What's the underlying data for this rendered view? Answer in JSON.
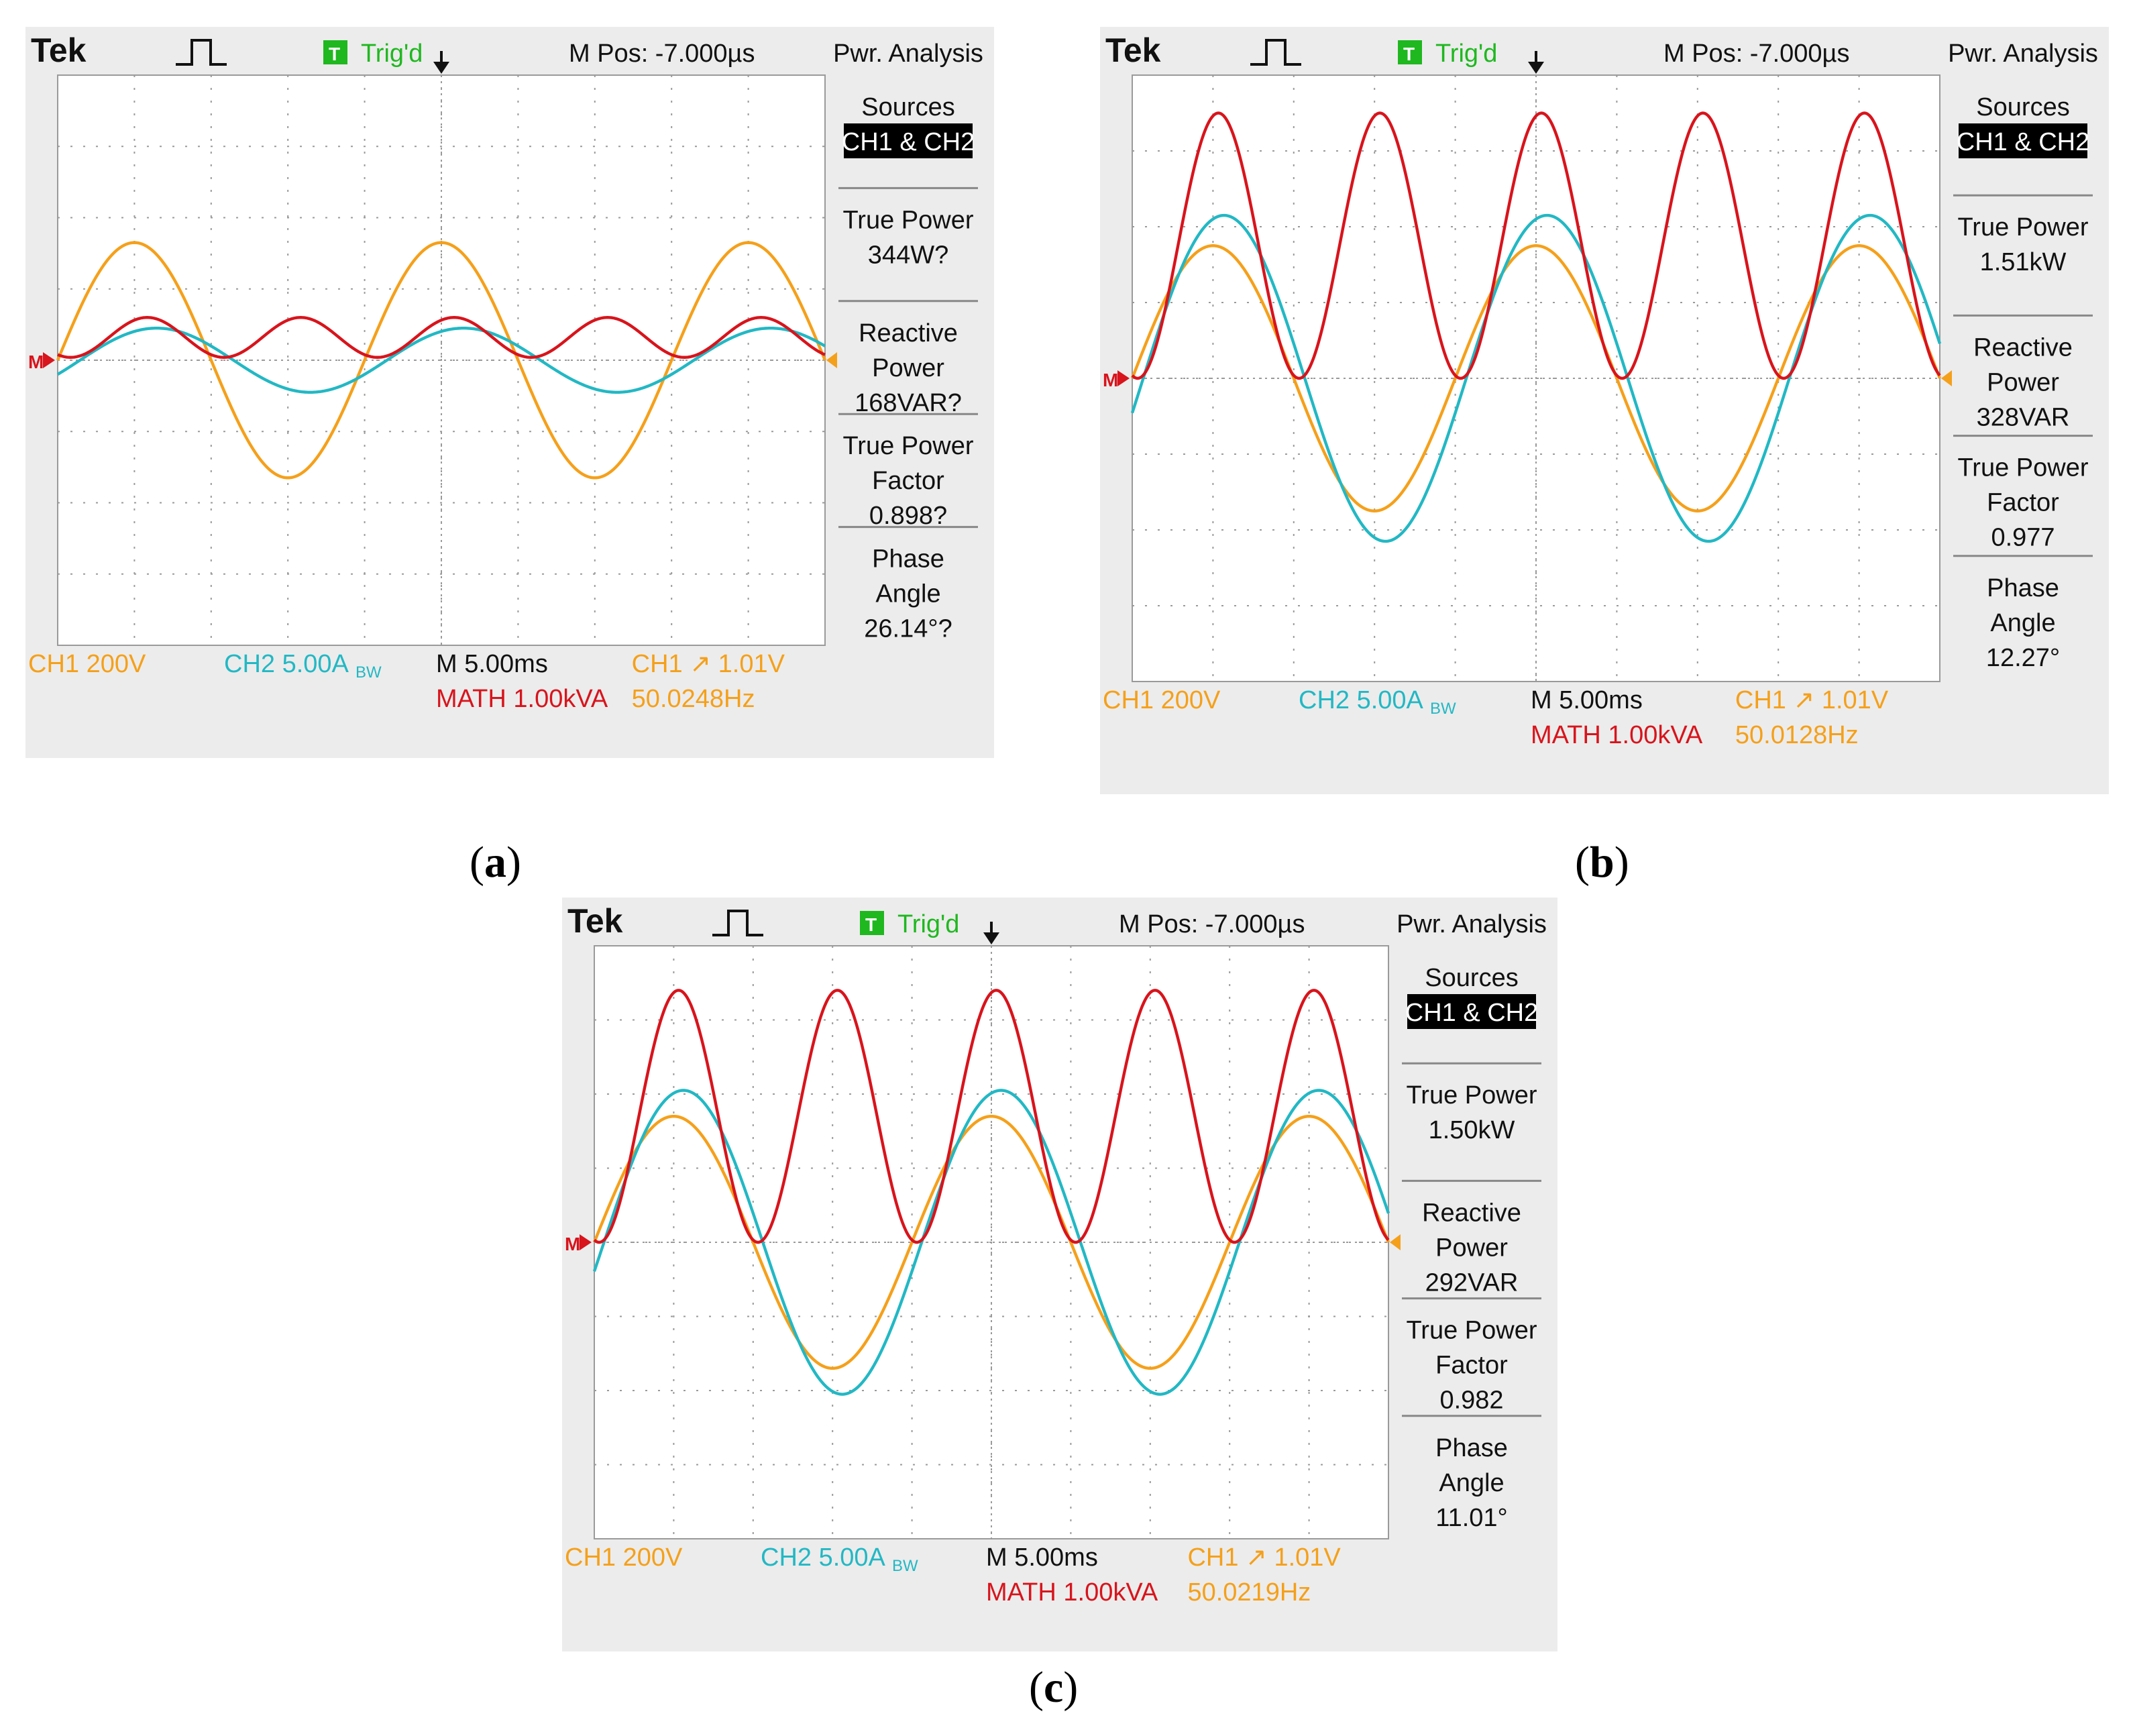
{
  "scopes": [
    {
      "id": "a",
      "caption": "a",
      "brand": "Tek",
      "trig_icon": "T",
      "trig_status": "Trig'd",
      "mpos": "M Pos: -7.000µs",
      "menu_title": "Pwr. Analysis",
      "ch1_label": "CH1  200V",
      "ch2_label": "CH2  5.00A",
      "ch2_suffix": "BW",
      "timebase": "M 5.00ms",
      "math_label": "MATH 1.00kVA",
      "trigger": "CH1 ↗ 1.01V",
      "frequency": "50.0248Hz",
      "side_menu": [
        {
          "lines": [
            "Sources"
          ],
          "highlight": "CH1 & CH2"
        },
        {
          "lines": [
            "True Power",
            "344W?"
          ]
        },
        {
          "lines": [
            "Reactive",
            "Power",
            "168VAR?"
          ]
        },
        {
          "lines": [
            "True Power",
            "Factor",
            "0.898?"
          ]
        },
        {
          "lines": [
            "Phase",
            "Angle",
            "26.14°?"
          ]
        }
      ]
    },
    {
      "id": "b",
      "caption": "b",
      "brand": "Tek",
      "trig_icon": "T",
      "trig_status": "Trig'd",
      "mpos": "M Pos: -7.000µs",
      "menu_title": "Pwr. Analysis",
      "ch1_label": "CH1  200V",
      "ch2_label": "CH2  5.00A",
      "ch2_suffix": "BW",
      "timebase": "M 5.00ms",
      "math_label": "MATH 1.00kVA",
      "trigger": "CH1 ↗ 1.01V",
      "frequency": "50.0128Hz",
      "side_menu": [
        {
          "lines": [
            "Sources"
          ],
          "highlight": "CH1 & CH2"
        },
        {
          "lines": [
            "True Power",
            "1.51kW"
          ]
        },
        {
          "lines": [
            "Reactive",
            "Power",
            "328VAR"
          ]
        },
        {
          "lines": [
            "True Power",
            "Factor",
            "0.977"
          ]
        },
        {
          "lines": [
            "Phase",
            "Angle",
            "12.27°"
          ]
        }
      ]
    },
    {
      "id": "c",
      "caption": "c",
      "brand": "Tek",
      "trig_icon": "T",
      "trig_status": "Trig'd",
      "mpos": "M Pos: -7.000µs",
      "menu_title": "Pwr. Analysis",
      "ch1_label": "CH1  200V",
      "ch2_label": "CH2  5.00A",
      "ch2_suffix": "BW",
      "timebase": "M 5.00ms",
      "math_label": "MATH 1.00kVA",
      "trigger": "CH1 ↗ 1.01V",
      "frequency": "50.0219Hz",
      "side_menu": [
        {
          "lines": [
            "Sources"
          ],
          "highlight": "CH1 & CH2"
        },
        {
          "lines": [
            "True Power",
            "1.50kW"
          ]
        },
        {
          "lines": [
            "Reactive",
            "Power",
            "292VAR"
          ]
        },
        {
          "lines": [
            "True Power",
            "Factor",
            "0.982"
          ]
        },
        {
          "lines": [
            "Phase",
            "Angle",
            "11.01°"
          ]
        }
      ]
    }
  ],
  "colors": {
    "ch1": "#f5a01a",
    "ch2": "#22b8c4",
    "math": "#d8141c",
    "grid": "#9a9a9a",
    "trig_green": "#1fb81f",
    "text": "#111111"
  },
  "chart_data": [
    {
      "type": "line",
      "title": "(a)",
      "x_unit": "divisions (5.00 ms/div)",
      "xlim": [
        0,
        10
      ],
      "ylim": [
        -4,
        4
      ],
      "series": [
        {
          "name": "CH1 voltage",
          "kind": "sine",
          "amplitude_div": 1.65,
          "offset_div": 0.0,
          "period_div": 4.0,
          "phase_deg": 0
        },
        {
          "name": "CH2 current",
          "kind": "sine",
          "amplitude_div": 0.45,
          "offset_div": 0.0,
          "period_div": 4.0,
          "phase_deg": 26.14
        },
        {
          "name": "MATH power",
          "kind": "power",
          "mean_div": 0.32,
          "swing_div": 0.28,
          "period_div": 2.0,
          "phase_deg": 30
        }
      ]
    },
    {
      "type": "line",
      "title": "(b)",
      "x_unit": "divisions (5.00 ms/div)",
      "xlim": [
        0,
        10
      ],
      "ylim": [
        -4,
        4
      ],
      "series": [
        {
          "name": "CH1 voltage",
          "kind": "sine",
          "amplitude_div": 1.75,
          "offset_div": 0.0,
          "period_div": 4.0,
          "phase_deg": 0
        },
        {
          "name": "CH2 current",
          "kind": "sine",
          "amplitude_div": 2.15,
          "offset_div": 0.0,
          "period_div": 4.0,
          "phase_deg": 12.27
        },
        {
          "name": "MATH power",
          "kind": "power",
          "mean_div": 1.75,
          "swing_div": 1.75,
          "period_div": 2.0,
          "phase_deg": 12
        }
      ]
    },
    {
      "type": "line",
      "title": "(c)",
      "x_unit": "divisions (5.00 ms/div)",
      "xlim": [
        0,
        10
      ],
      "ylim": [
        -4,
        4
      ],
      "series": [
        {
          "name": "CH1 voltage",
          "kind": "sine",
          "amplitude_div": 1.7,
          "offset_div": 0.0,
          "period_div": 4.0,
          "phase_deg": 0
        },
        {
          "name": "CH2 current",
          "kind": "sine",
          "amplitude_div": 2.05,
          "offset_div": 0.0,
          "period_div": 4.0,
          "phase_deg": 11.01
        },
        {
          "name": "MATH power",
          "kind": "power",
          "mean_div": 1.7,
          "swing_div": 1.7,
          "period_div": 2.0,
          "phase_deg": 11
        }
      ]
    }
  ]
}
